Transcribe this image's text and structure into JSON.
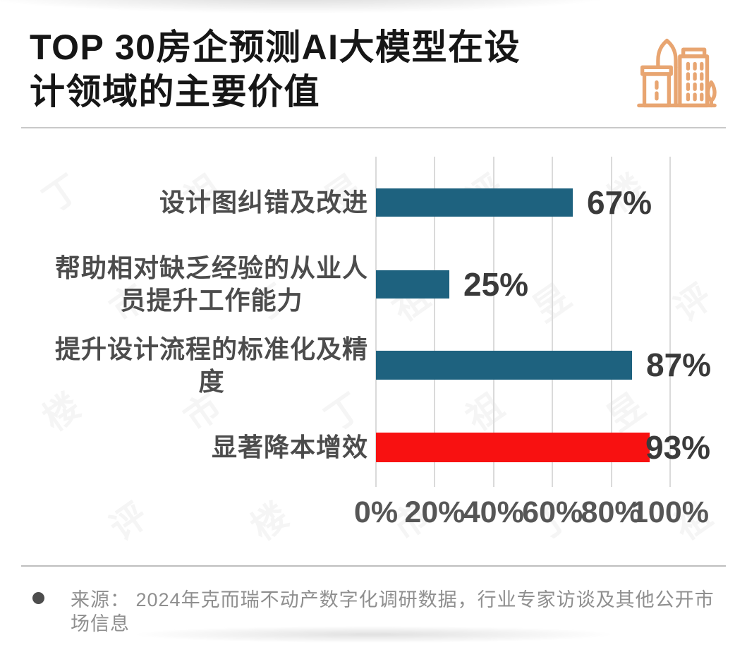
{
  "header": {
    "title_display": "TOP 30房企预测AI大模型在设\n计领域的主要价值",
    "icon": "buildings-icon"
  },
  "chart_data": {
    "type": "bar",
    "orientation": "horizontal",
    "title": "TOP 30房企预测AI大模型在设计领域的主要价值",
    "categories": [
      "设计图纠错及改进",
      "帮助相对缺乏经验的从业人员提升工作能力",
      "提升设计流程的标准化及精度",
      "显著降本增效"
    ],
    "category_lines": [
      [
        "设计图纠错及改进"
      ],
      [
        "帮助相对缺乏经验的从业人",
        "员提升工作能力"
      ],
      [
        "提升设计流程的标准化及精",
        "度"
      ],
      [
        "显著降本增效"
      ]
    ],
    "values": [
      67,
      25,
      87,
      93
    ],
    "value_labels": [
      "67%",
      "25%",
      "87%",
      "93%"
    ],
    "bar_colors": [
      "#1E627F",
      "#1E627F",
      "#1E627F",
      "#F81111"
    ],
    "x_tick_labels": [
      "0%",
      "20%",
      "40%",
      "60%",
      "80%",
      "100%"
    ],
    "xlim": [
      0,
      100
    ],
    "grid": true,
    "legend_position": "none"
  },
  "watermark": {
    "text": "丁祖昱评楼市"
  },
  "footer": {
    "source": "来源： 2024年克而瑞不动产数字化调研数据，行业专家访谈及其他公开市场信息"
  },
  "colors": {
    "bar_teal": "#1E627F",
    "bar_red": "#F81111",
    "icon_orange": "#E8A571",
    "gridline": "#DADADA",
    "title_text": "#161616",
    "category_text": "#4C4C4C",
    "value_text": "#3A3A3A",
    "tick_text": "#565656",
    "source_text": "#8F8F8F"
  }
}
